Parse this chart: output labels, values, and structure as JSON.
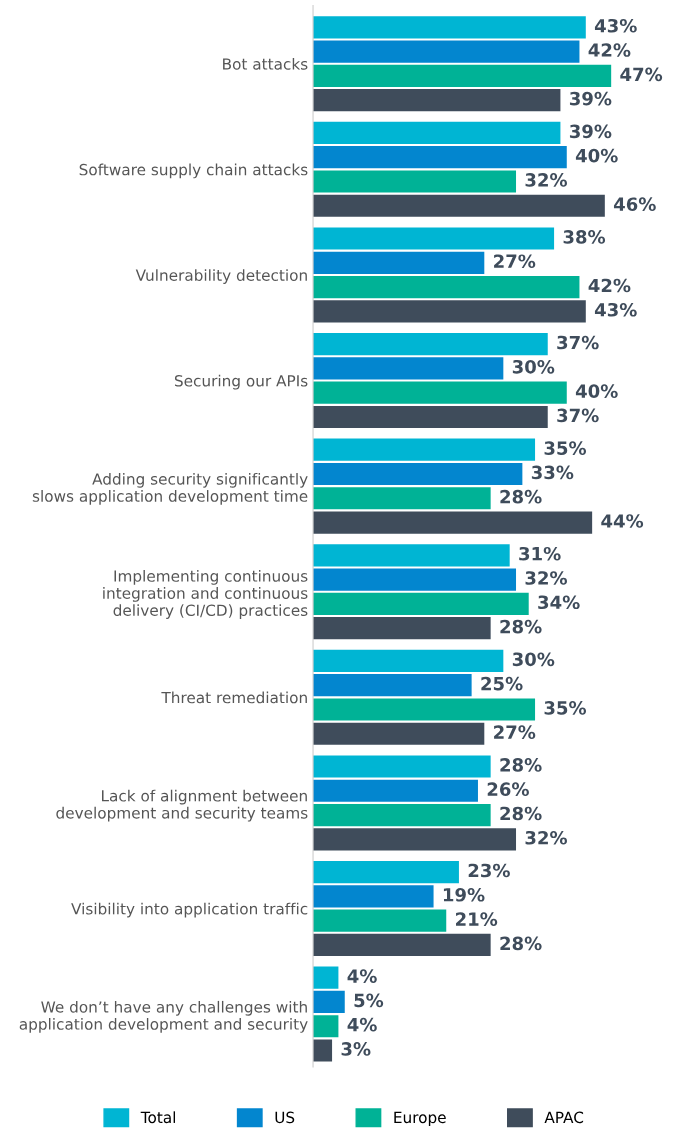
{
  "chart_data": {
    "type": "bar",
    "orientation": "horizontal",
    "tick_labels": "y",
    "legend": "bottom",
    "categories": [
      "Bot attacks",
      "Software supply chain attacks",
      "Vulnerability detection",
      "Securing our APIs",
      "Adding security significantly\nslows application development time",
      "Implementing continuous\nintegration and continuous\ndelivery (CI/CD) practices",
      "Threat remediation",
      "Lack of alignment between\ndevelopment and security teams",
      "Visibility into application traffic",
      "We don’t have any challenges with\napplication development and security"
    ],
    "series": [
      {
        "name": "Total",
        "color": "#00b5d3",
        "values": [
          43,
          39,
          38,
          37,
          35,
          31,
          30,
          28,
          23,
          4
        ],
        "value_labels": [
          "43%",
          "39%",
          "38%",
          "37%",
          "35%",
          "31%",
          "30%",
          "28%",
          "23%",
          "4%"
        ]
      },
      {
        "name": "US",
        "color": "#0386cf",
        "values": [
          42,
          40,
          27,
          30,
          33,
          32,
          25,
          26,
          19,
          5
        ],
        "value_labels": [
          "42%",
          "40%",
          "27%",
          "30%",
          "33%",
          "32%",
          "25%",
          "26%",
          "19%",
          "5%"
        ]
      },
      {
        "name": "Europe",
        "color": "#00b296",
        "values": [
          47,
          32,
          42,
          40,
          28,
          34,
          35,
          28,
          21,
          4
        ],
        "value_labels": [
          "47%",
          "32%",
          "42%",
          "40%",
          "28%",
          "34%",
          "35%",
          "28%",
          "21%",
          "4%"
        ]
      },
      {
        "name": "APAC",
        "color": "#3f4c5b",
        "values": [
          39,
          46,
          43,
          37,
          44,
          28,
          27,
          32,
          28,
          3
        ],
        "value_labels": [
          "39%",
          "46%",
          "43%",
          "37%",
          "44%",
          "28%",
          "27%",
          "32%",
          "28%",
          "3%"
        ]
      }
    ]
  }
}
